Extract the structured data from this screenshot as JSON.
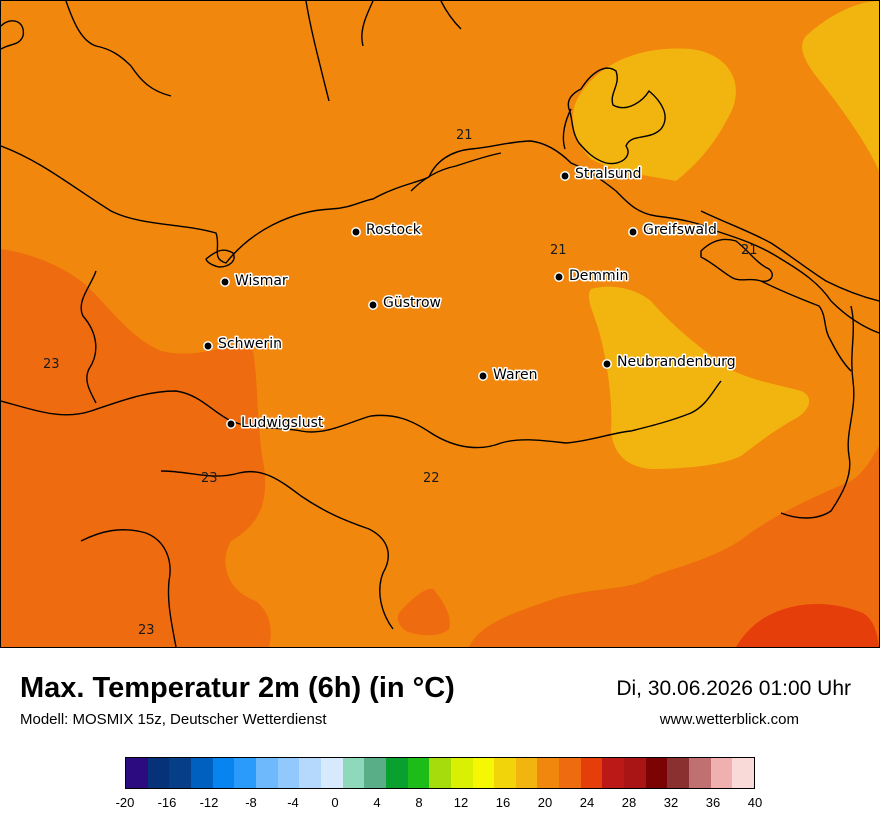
{
  "map": {
    "colors": {
      "band_20_22": "#f2b40e",
      "band_22_24": "#f1870d",
      "band_24_26": "#ef6b0f",
      "band_26_28": "#e63e0b",
      "coastline": "#000000"
    },
    "cities": [
      {
        "name": "Stralsund"
      },
      {
        "name": "Rostock"
      },
      {
        "name": "Greifswald"
      },
      {
        "name": "Demmin"
      },
      {
        "name": "Wismar"
      },
      {
        "name": "Güstrow"
      },
      {
        "name": "Schwerin"
      },
      {
        "name": "Neubrandenburg"
      },
      {
        "name": "Waren"
      },
      {
        "name": "Ludwigslust"
      }
    ],
    "contour_labels": [
      "21",
      "21",
      "21",
      "23",
      "23",
      "22",
      "23"
    ]
  },
  "footer": {
    "title": "Max. Temperatur 2m (6h) (in °C)",
    "model": "Modell: MOSMIX 15z, Deutscher Wetterdienst",
    "datetime": "Di, 30.06.2026 01:00 Uhr",
    "website": "www.wetterblick.com"
  },
  "legend": {
    "colors": [
      "#2c0a80",
      "#06327a",
      "#063f88",
      "#0060c0",
      "#0784f0",
      "#2b9bfb",
      "#6db9fc",
      "#91c9fc",
      "#b5d9fc",
      "#d6e9fd",
      "#8ed9bc",
      "#5aae87",
      "#0aa02f",
      "#1cbc19",
      "#a6dc0c",
      "#d9ef04",
      "#f6f702",
      "#f2d40b",
      "#f2b40e",
      "#f1870d",
      "#ef6b0f",
      "#e63e0b",
      "#bb1818",
      "#a91515",
      "#7c0303",
      "#8a3030",
      "#c07070",
      "#f1b0b0",
      "#fad9d9"
    ],
    "ticks": [
      "-20",
      "-16",
      "-12",
      "-8",
      "-4",
      "0",
      "4",
      "8",
      "12",
      "16",
      "20",
      "24",
      "28",
      "32",
      "36",
      "40"
    ]
  }
}
